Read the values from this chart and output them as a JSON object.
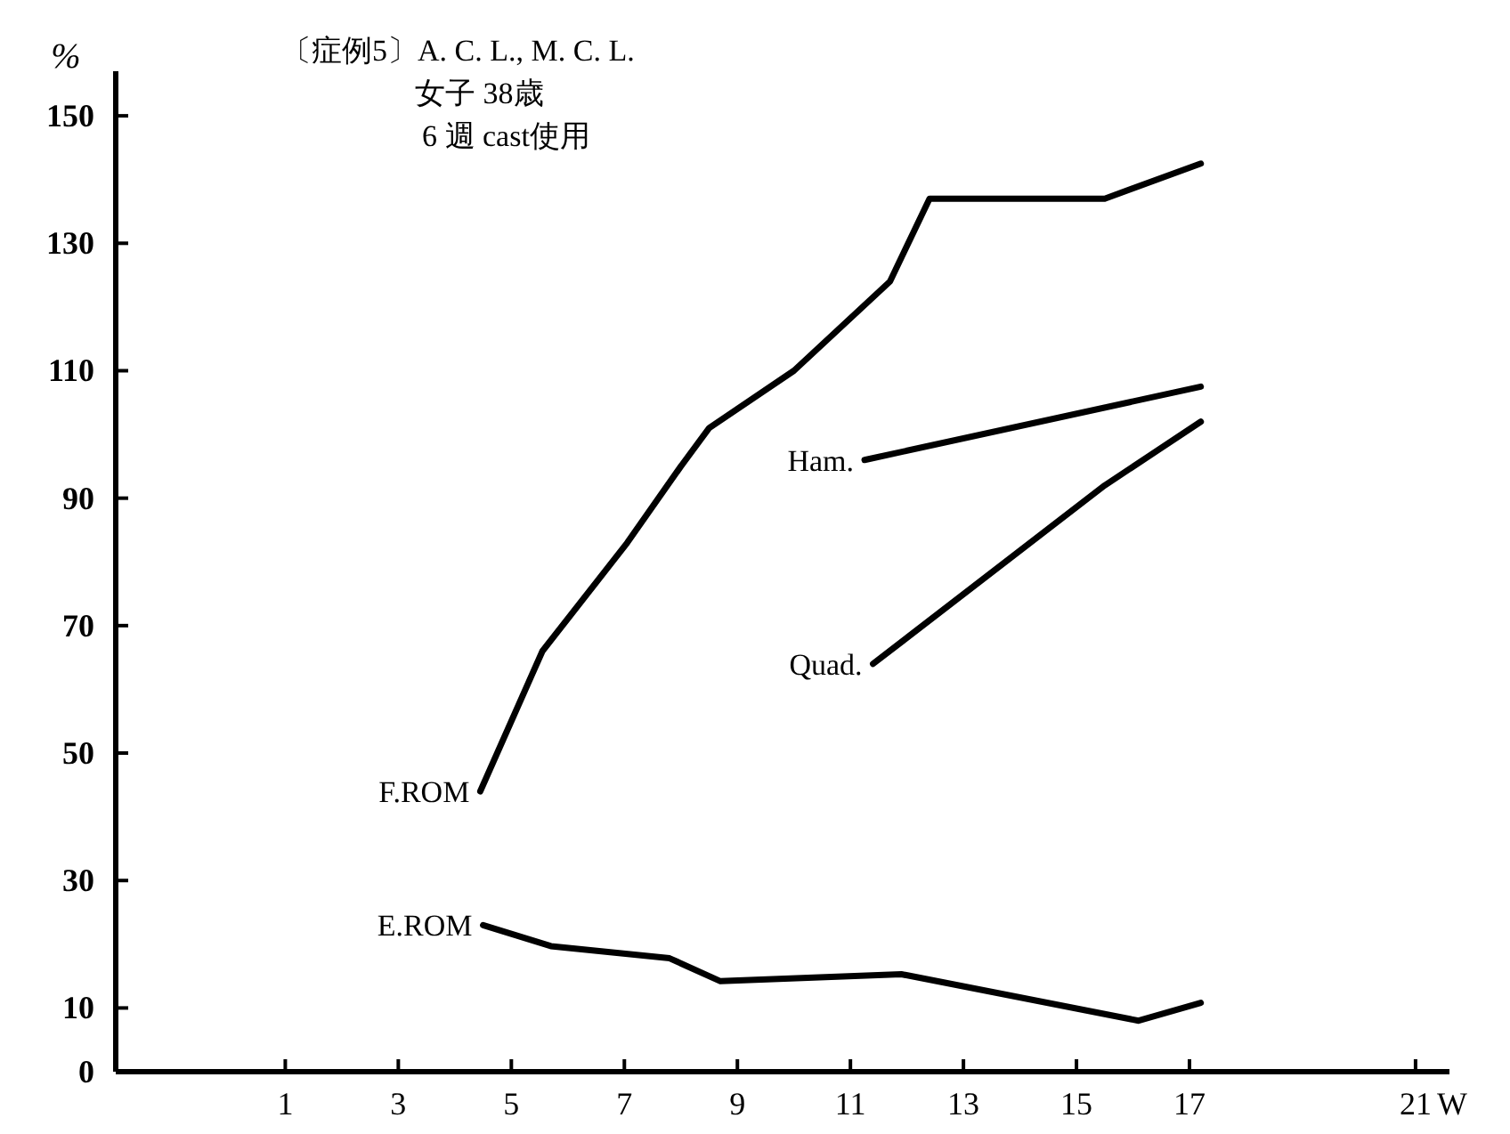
{
  "chart_data": {
    "type": "line",
    "title": "〔症例5〕A. C. L., M. C. L.",
    "subtitle": "女子 38歳",
    "annotations": [
      "6 週 cast使用"
    ],
    "ylabel": "%",
    "xlabel": "W",
    "xlim": [
      -2,
      21.6
    ],
    "xticks": [
      1,
      3,
      5,
      7,
      9,
      11,
      13,
      15,
      17,
      21
    ],
    "ylim": [
      0,
      157
    ],
    "yticks": [
      0,
      10,
      30,
      50,
      70,
      90,
      110,
      130,
      150
    ],
    "grid": false,
    "marker": "none",
    "line_style": "solid",
    "series": [
      {
        "name": "F.ROM",
        "color": "#000000",
        "x": [
          4.45,
          5.55,
          7.05,
          8,
          8.5,
          10,
          11.7,
          12.4,
          15.5,
          17.2
        ],
        "values": [
          44,
          66,
          83,
          95,
          101,
          110,
          124,
          137,
          137,
          142.5
        ]
      },
      {
        "name": "Ham.",
        "color": "#000000",
        "x": [
          11.25,
          17.2
        ],
        "values": [
          96,
          107.5
        ]
      },
      {
        "name": "Quad.",
        "color": "#000000",
        "x": [
          11.4,
          15.5,
          17.2
        ],
        "values": [
          64,
          92,
          102
        ]
      },
      {
        "name": "E.ROM",
        "color": "#000000",
        "x": [
          4.5,
          5.7,
          7.8,
          8.7,
          11.9,
          16.1,
          17.2
        ],
        "values": [
          23,
          19.7,
          17.8,
          14.2,
          15.3,
          8,
          10.8
        ]
      }
    ]
  }
}
